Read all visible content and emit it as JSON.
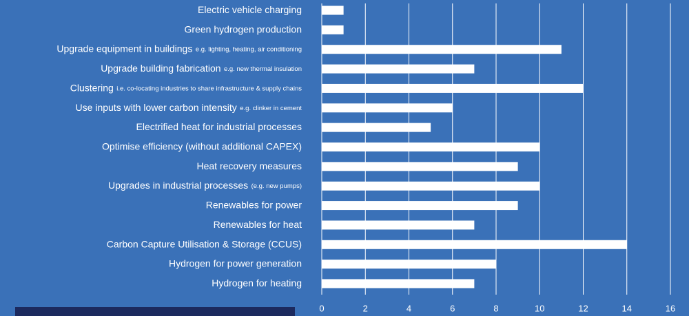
{
  "chart_data": {
    "type": "bar",
    "orientation": "horizontal",
    "categories": [
      "Electric vehicle charging",
      "Green hydrogen production",
      "Upgrade equipment in buildings",
      "Upgrade building fabrication",
      "Clustering",
      "Use inputs with lower carbon intensity",
      "Electrified heat for industrial processes",
      "Optimise efficiency (without additional CAPEX)",
      "Heat recovery measures",
      "Upgrades in industrial processes",
      "Renewables for power",
      "Renewables for heat",
      "Carbon Capture Utilisation & Storage (CCUS)",
      "Hydrogen for power generation",
      "Hydrogen for heating"
    ],
    "category_notes": [
      null,
      null,
      "e.g. lighting, heating, air conditioning",
      "e.g. new thermal insulation",
      "i.e. co-locating industries to share infrastructure & supply chains",
      "e.g. clinker in cement",
      null,
      null,
      null,
      "(e.g. new pumps)",
      null,
      null,
      null,
      null,
      null
    ],
    "values": [
      1,
      1,
      11,
      7,
      12,
      6,
      5,
      10,
      9,
      10,
      9,
      7,
      14,
      8,
      7
    ],
    "color": "#ffffff",
    "xlim": [
      0,
      16
    ],
    "xticks": [
      0,
      2,
      4,
      6,
      8,
      10,
      12,
      14,
      16
    ],
    "grid": true
  }
}
